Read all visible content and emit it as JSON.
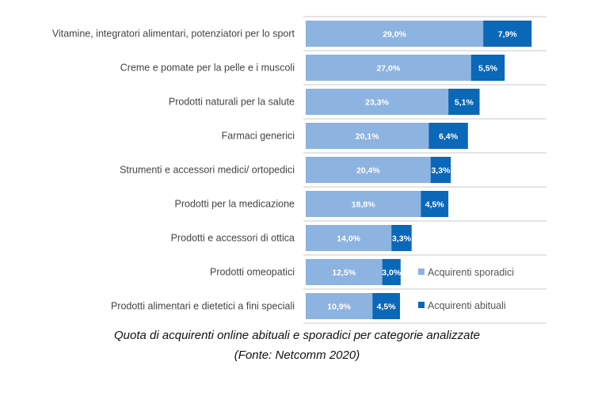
{
  "chart_data": {
    "type": "bar",
    "orientation": "horizontal",
    "stacked": true,
    "categories": [
      "Vitamine, integratori alimentari, potenziatori per lo sport",
      "Creme e pomate per la pelle e i muscoli",
      "Prodotti naturali per la salute",
      "Farmaci generici",
      "Strumenti e accessori medici/ ortopedici",
      "Prodotti per la medicazione",
      "Prodotti e accessori di ottica",
      "Prodotti omeopatici",
      "Prodotti alimentari e dietetici a fini speciali"
    ],
    "series": [
      {
        "name": "Acquirenti sporadici",
        "color": "#8db3e0",
        "values": [
          29.0,
          27.0,
          23.3,
          20.1,
          20.4,
          18.8,
          14.0,
          12.5,
          10.9
        ],
        "labels": [
          "29,0%",
          "27,0%",
          "23,3%",
          "20,1%",
          "20,4%",
          "18,8%",
          "14,0%",
          "12,5%",
          "10,9%"
        ]
      },
      {
        "name": "Acquirenti abituali",
        "color": "#0b67b8",
        "values": [
          7.9,
          5.5,
          5.1,
          6.4,
          3.3,
          4.5,
          3.3,
          3.0,
          4.5
        ],
        "labels": [
          "7,9%",
          "5,5%",
          "5,1%",
          "6,4%",
          "3,3%",
          "4,5%",
          "3,3%",
          "3,0%",
          "4,5%"
        ]
      }
    ],
    "legend": "bottom-right",
    "grid": false
  },
  "caption": {
    "line1": "Quota di acquirenti online abituali e sporadici per categorie analizzate",
    "line2": "(Fonte: Netcomm 2020)"
  }
}
